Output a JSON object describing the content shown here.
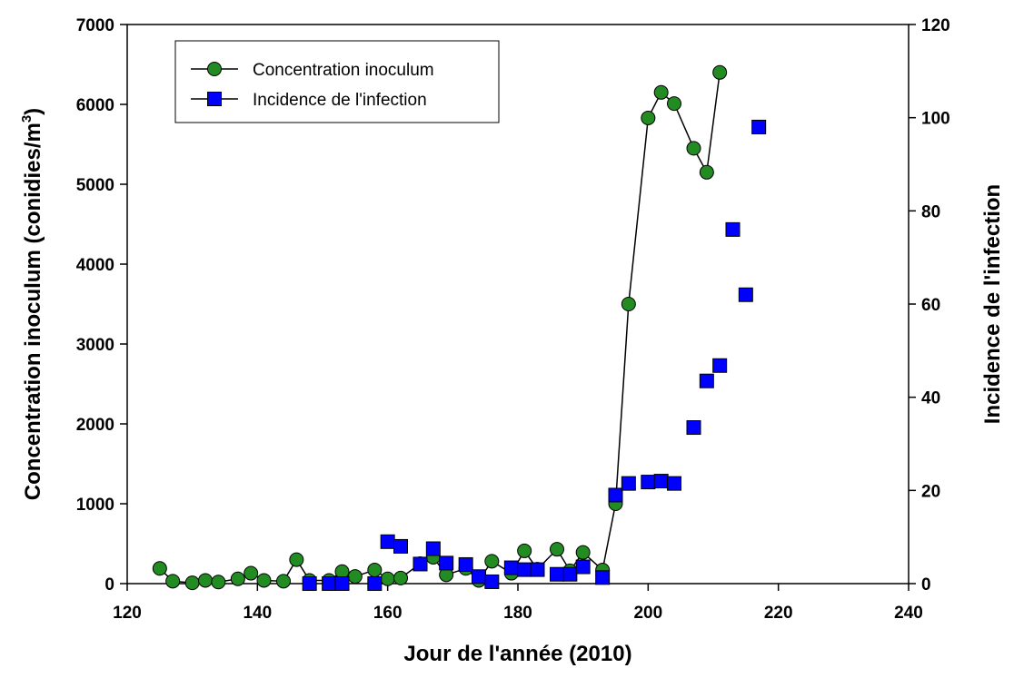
{
  "chart_data": {
    "type": "line",
    "xlabel": "Jour de l'année (2010)",
    "ylabel_main": "Concentration inoculum (conidies/m",
    "ylabel_sup": "3",
    "ylabel_close": ")",
    "y2label": "Incidence de l'infection",
    "xlim": [
      120,
      240
    ],
    "ylim": [
      0,
      7000
    ],
    "y2lim": [
      0,
      120
    ],
    "x_ticks": [
      120,
      140,
      160,
      180,
      200,
      220,
      240
    ],
    "y_ticks": [
      0,
      1000,
      2000,
      3000,
      4000,
      5000,
      6000,
      7000
    ],
    "y2_ticks": [
      0,
      20,
      40,
      60,
      80,
      100,
      120
    ],
    "grid": false,
    "legend_position": "top-left",
    "series": [
      {
        "name": "Concentration inoculum",
        "axis": "left",
        "marker": "circle",
        "color": "#228b22",
        "line": true,
        "points": [
          [
            125,
            190
          ],
          [
            127,
            30
          ],
          [
            130,
            10
          ],
          [
            132,
            40
          ],
          [
            134,
            20
          ],
          [
            137,
            60
          ],
          [
            139,
            130
          ],
          [
            141,
            40
          ],
          [
            144,
            30
          ],
          [
            146,
            300
          ],
          [
            148,
            40
          ],
          [
            151,
            40
          ],
          [
            153,
            150
          ],
          [
            155,
            90
          ],
          [
            158,
            170
          ],
          [
            160,
            60
          ],
          [
            162,
            70
          ],
          [
            165,
            250
          ],
          [
            167,
            330
          ],
          [
            169,
            110
          ],
          [
            172,
            190
          ],
          [
            174,
            40
          ],
          [
            176,
            280
          ],
          [
            179,
            130
          ],
          [
            181,
            410
          ],
          [
            183,
            180
          ],
          [
            186,
            430
          ],
          [
            188,
            160
          ],
          [
            190,
            390
          ],
          [
            193,
            170
          ],
          [
            195,
            1000
          ],
          [
            197,
            3500
          ],
          [
            200,
            5830
          ],
          [
            202,
            6150
          ],
          [
            204,
            6010
          ],
          [
            207,
            5450
          ],
          [
            209,
            5150
          ],
          [
            211,
            6400
          ]
        ]
      },
      {
        "name": "Incidence de l'infection",
        "axis": "right",
        "marker": "square",
        "color": "#0000ff",
        "line": false,
        "points": [
          [
            148,
            0
          ],
          [
            151,
            0
          ],
          [
            153,
            0
          ],
          [
            158,
            0
          ],
          [
            160,
            9
          ],
          [
            162,
            8
          ],
          [
            165,
            4.2
          ],
          [
            167,
            7.5
          ],
          [
            169,
            4.4
          ],
          [
            172,
            4.1
          ],
          [
            174,
            1.5
          ],
          [
            176,
            0.4
          ],
          [
            179,
            3.4
          ],
          [
            181,
            3.0
          ],
          [
            183,
            3.0
          ],
          [
            186,
            2.0
          ],
          [
            188,
            2.0
          ],
          [
            190,
            3.6
          ],
          [
            193,
            1.3
          ],
          [
            195,
            19
          ],
          [
            197,
            21.5
          ],
          [
            200,
            21.8
          ],
          [
            202,
            22
          ],
          [
            204,
            21.5
          ],
          [
            207,
            33.5
          ],
          [
            209,
            43.5
          ],
          [
            211,
            46.8
          ],
          [
            213,
            76
          ],
          [
            215,
            62
          ],
          [
            217,
            98
          ]
        ]
      }
    ]
  }
}
